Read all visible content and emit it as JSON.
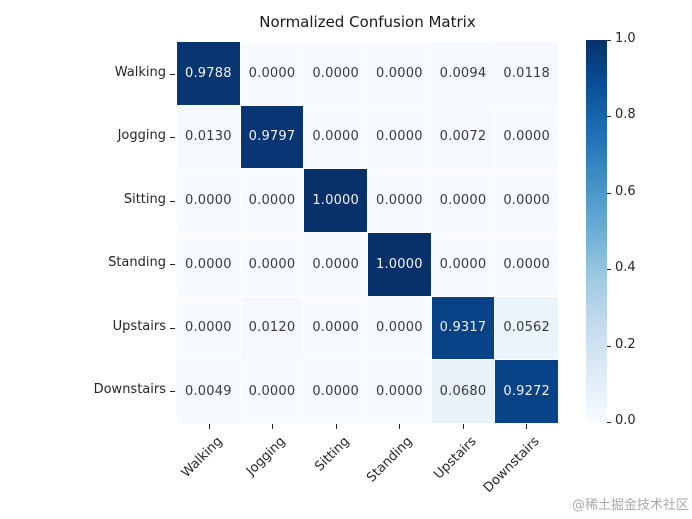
{
  "title": "Normalized Confusion Matrix",
  "watermark": "@稀土掘金技术社区",
  "chart_data": {
    "type": "heatmap",
    "title": "Normalized Confusion Matrix",
    "categories": [
      "Walking",
      "Jogging",
      "Sitting",
      "Standing",
      "Upstairs",
      "Downstairs"
    ],
    "rows": [
      [
        0.9788,
        0.0,
        0.0,
        0.0,
        0.0094,
        0.0118
      ],
      [
        0.013,
        0.9797,
        0.0,
        0.0,
        0.0072,
        0.0
      ],
      [
        0.0,
        0.0,
        1.0,
        0.0,
        0.0,
        0.0
      ],
      [
        0.0,
        0.0,
        0.0,
        1.0,
        0.0,
        0.0
      ],
      [
        0.0,
        0.012,
        0.0,
        0.0,
        0.9317,
        0.0562
      ],
      [
        0.0049,
        0.0,
        0.0,
        0.0,
        0.068,
        0.9272
      ]
    ],
    "value_decimals": 4,
    "vmin": 0.0,
    "vmax": 1.0,
    "colorbar_ticks": [
      0.0,
      0.2,
      0.4,
      0.6,
      0.8,
      1.0
    ],
    "colorbar_tick_decimals": 1,
    "legend_position": "right-colorbar",
    "grid": false,
    "colormap": {
      "name": "Blues",
      "stops": [
        {
          "pos": 0.0,
          "hex": "#f7fbff"
        },
        {
          "pos": 0.125,
          "hex": "#deebf7"
        },
        {
          "pos": 0.25,
          "hex": "#c6dbef"
        },
        {
          "pos": 0.375,
          "hex": "#9ecae1"
        },
        {
          "pos": 0.5,
          "hex": "#6baed6"
        },
        {
          "pos": 0.625,
          "hex": "#4292c6"
        },
        {
          "pos": 0.75,
          "hex": "#2171b5"
        },
        {
          "pos": 0.875,
          "hex": "#08519c"
        },
        {
          "pos": 1.0,
          "hex": "#08306b"
        }
      ]
    },
    "colors": {
      "annot_light": "#f2f2f2",
      "annot_dark": "#3a3a3a",
      "tick": "#262626",
      "title_text": "#1a1a1a",
      "watermark_text": "#a9a9a9"
    }
  }
}
